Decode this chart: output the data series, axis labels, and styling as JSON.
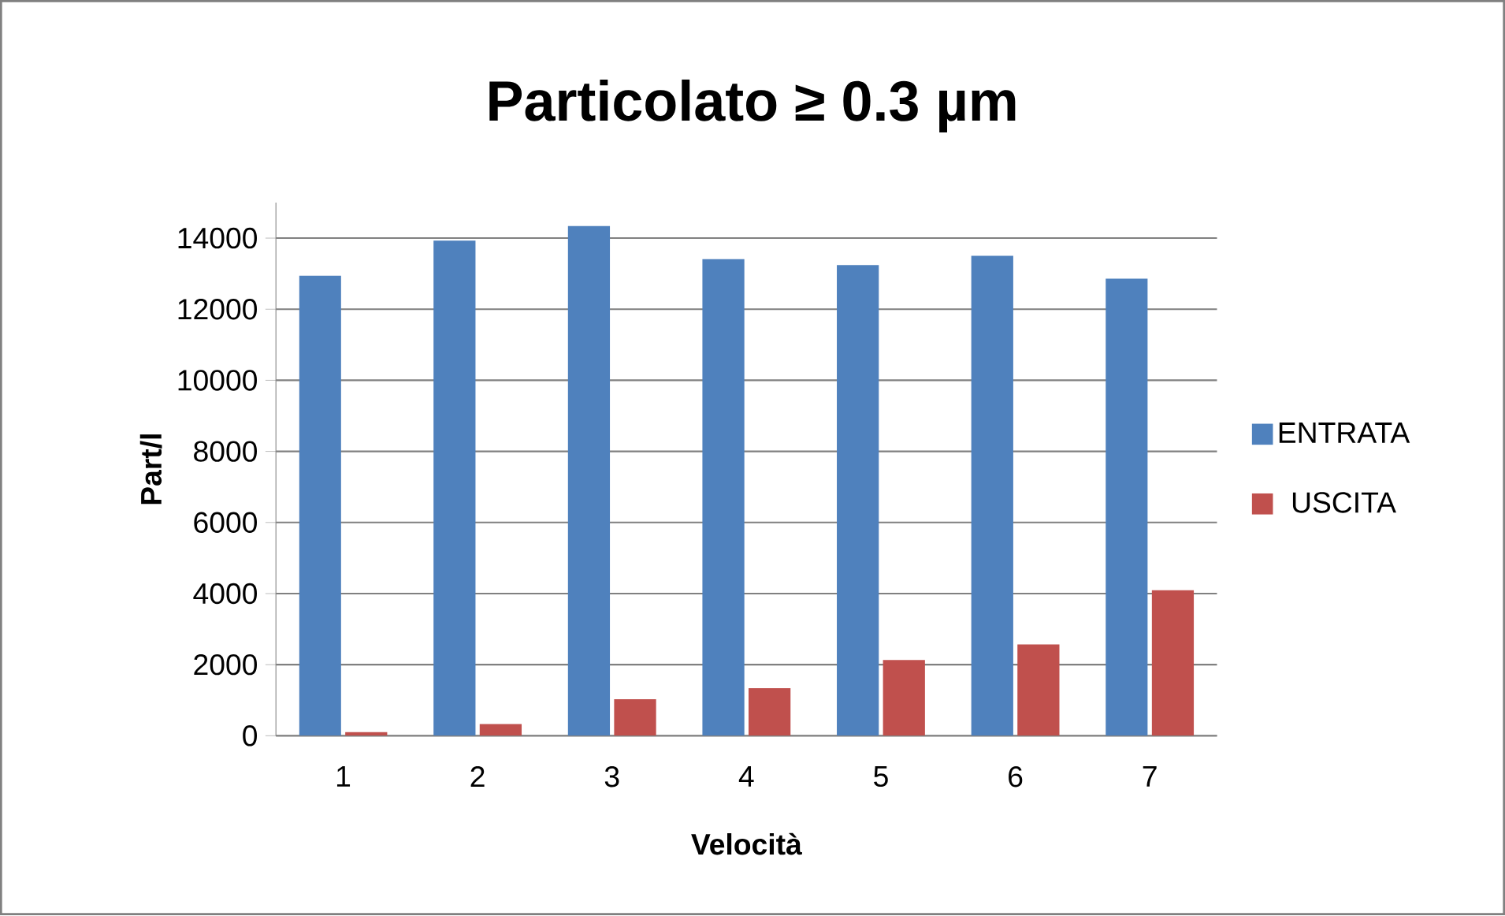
{
  "chart_data": {
    "type": "bar",
    "title": "Particolato ≥ 0.3 µm",
    "xlabel": "Velocità",
    "ylabel": "Part/l",
    "categories": [
      "1",
      "2",
      "3",
      "4",
      "5",
      "6",
      "7"
    ],
    "series": [
      {
        "name": "ENTRATA",
        "color": "#4f81bd",
        "values": [
          12940,
          13930,
          14340,
          13410,
          13240,
          13500,
          12860
        ]
      },
      {
        "name": "USCITA",
        "color": "#c0504d",
        "values": [
          100,
          330,
          1030,
          1340,
          2130,
          2570,
          4100
        ]
      }
    ],
    "ylim": [
      0,
      15000
    ],
    "yticks": [
      0,
      2000,
      4000,
      6000,
      8000,
      10000,
      12000,
      14000
    ],
    "grid": "y",
    "legend": "right"
  }
}
